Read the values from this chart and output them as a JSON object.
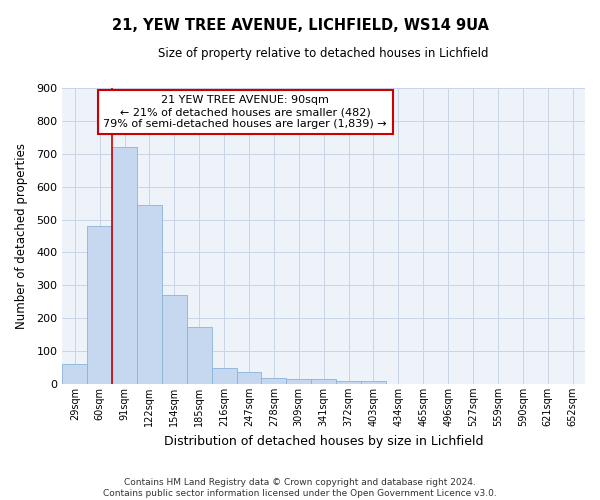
{
  "title": "21, YEW TREE AVENUE, LICHFIELD, WS14 9UA",
  "subtitle": "Size of property relative to detached houses in Lichfield",
  "xlabel": "Distribution of detached houses by size in Lichfield",
  "ylabel": "Number of detached properties",
  "bar_color": "#c5d8f0",
  "bar_edge_color": "#8ab4d8",
  "grid_color": "#c8d4e8",
  "background_color": "#eef2f9",
  "tick_labels": [
    "29sqm",
    "60sqm",
    "91sqm",
    "122sqm",
    "154sqm",
    "185sqm",
    "216sqm",
    "247sqm",
    "278sqm",
    "309sqm",
    "341sqm",
    "372sqm",
    "403sqm",
    "434sqm",
    "465sqm",
    "496sqm",
    "527sqm",
    "559sqm",
    "590sqm",
    "621sqm",
    "652sqm"
  ],
  "bar_values": [
    60,
    480,
    720,
    545,
    270,
    172,
    48,
    35,
    18,
    15,
    15,
    8,
    8,
    0,
    0,
    0,
    0,
    0,
    0,
    0,
    0
  ],
  "ylim": [
    0,
    900
  ],
  "yticks": [
    0,
    100,
    200,
    300,
    400,
    500,
    600,
    700,
    800,
    900
  ],
  "red_line_index": 2,
  "annotation_line1": "21 YEW TREE AVENUE: 90sqm",
  "annotation_line2": "← 21% of detached houses are smaller (482)",
  "annotation_line3": "79% of semi-detached houses are larger (1,839) →",
  "annotation_box_color": "#ffffff",
  "annotation_border_color": "#cc0000",
  "footer_line1": "Contains HM Land Registry data © Crown copyright and database right 2024.",
  "footer_line2": "Contains public sector information licensed under the Open Government Licence v3.0."
}
